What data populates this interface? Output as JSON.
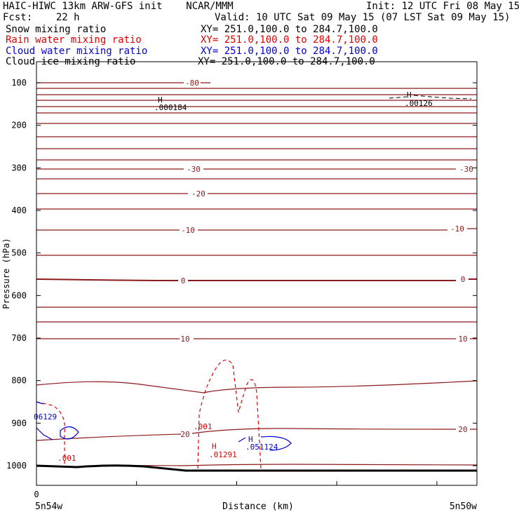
{
  "header": {
    "title_left": "HAIC-HIWC 13km ARW-GFS init    NCAR/MMM",
    "init": "Init: 12 UTC Fri 08 May 15",
    "fcst": "Fcst:    22 h",
    "valid": "Valid: 10 UTC Sat 09 May 15 (07 LST Sat 09 May 15)"
  },
  "fields": [
    {
      "name": "Snow mixing ratio",
      "xy": "XY= 251.0,100.0 to 284.7,100.0",
      "color": "#000000"
    },
    {
      "name": "Rain water mixing ratio",
      "xy": "XY= 251.0,100.0 to 284.7,100.0",
      "color": "#e00000"
    },
    {
      "name": "Cloud water mixing ratio",
      "xy": "XY= 251.0,100.0 to 284.7,100.0",
      "color": "#0000d0"
    },
    {
      "name": "Cloud ice mixing ratio",
      "xy": "XY= 251.0,100.0 to 284.7,100.0",
      "color": "#000000"
    }
  ],
  "chart_data": {
    "type": "cross-section contour",
    "ylabel": "Pressure (hPa)",
    "xlabel": "Distance (km)",
    "y_ticks": [
      100,
      200,
      300,
      400,
      500,
      600,
      700,
      800,
      900,
      1000
    ],
    "x_tick_label": "0",
    "x_left_label": "5n54w",
    "x_right_label": "5n50w",
    "temperature_labels": [
      "-80",
      "-30",
      "-30",
      "-20",
      "-10",
      "-10",
      "0",
      "0",
      "10",
      "10",
      "20",
      "20"
    ],
    "snow_max": {
      "label": "H",
      "value": ".000184"
    },
    "ice_max": {
      "label": "H",
      "value": ".00126"
    },
    "rain_contour_label": ".001",
    "rain_contour_label_2": ".001",
    "rain_max": {
      "label": "H",
      "value": ".01291"
    },
    "cloud_partial_label": "06129",
    "cloud_max": {
      "label": "H",
      "value": ".051124"
    },
    "colors": {
      "temperature": "#8b1a1a",
      "rain": "#e00000",
      "cloud": "#0000d0",
      "terrain": "#000000"
    }
  }
}
